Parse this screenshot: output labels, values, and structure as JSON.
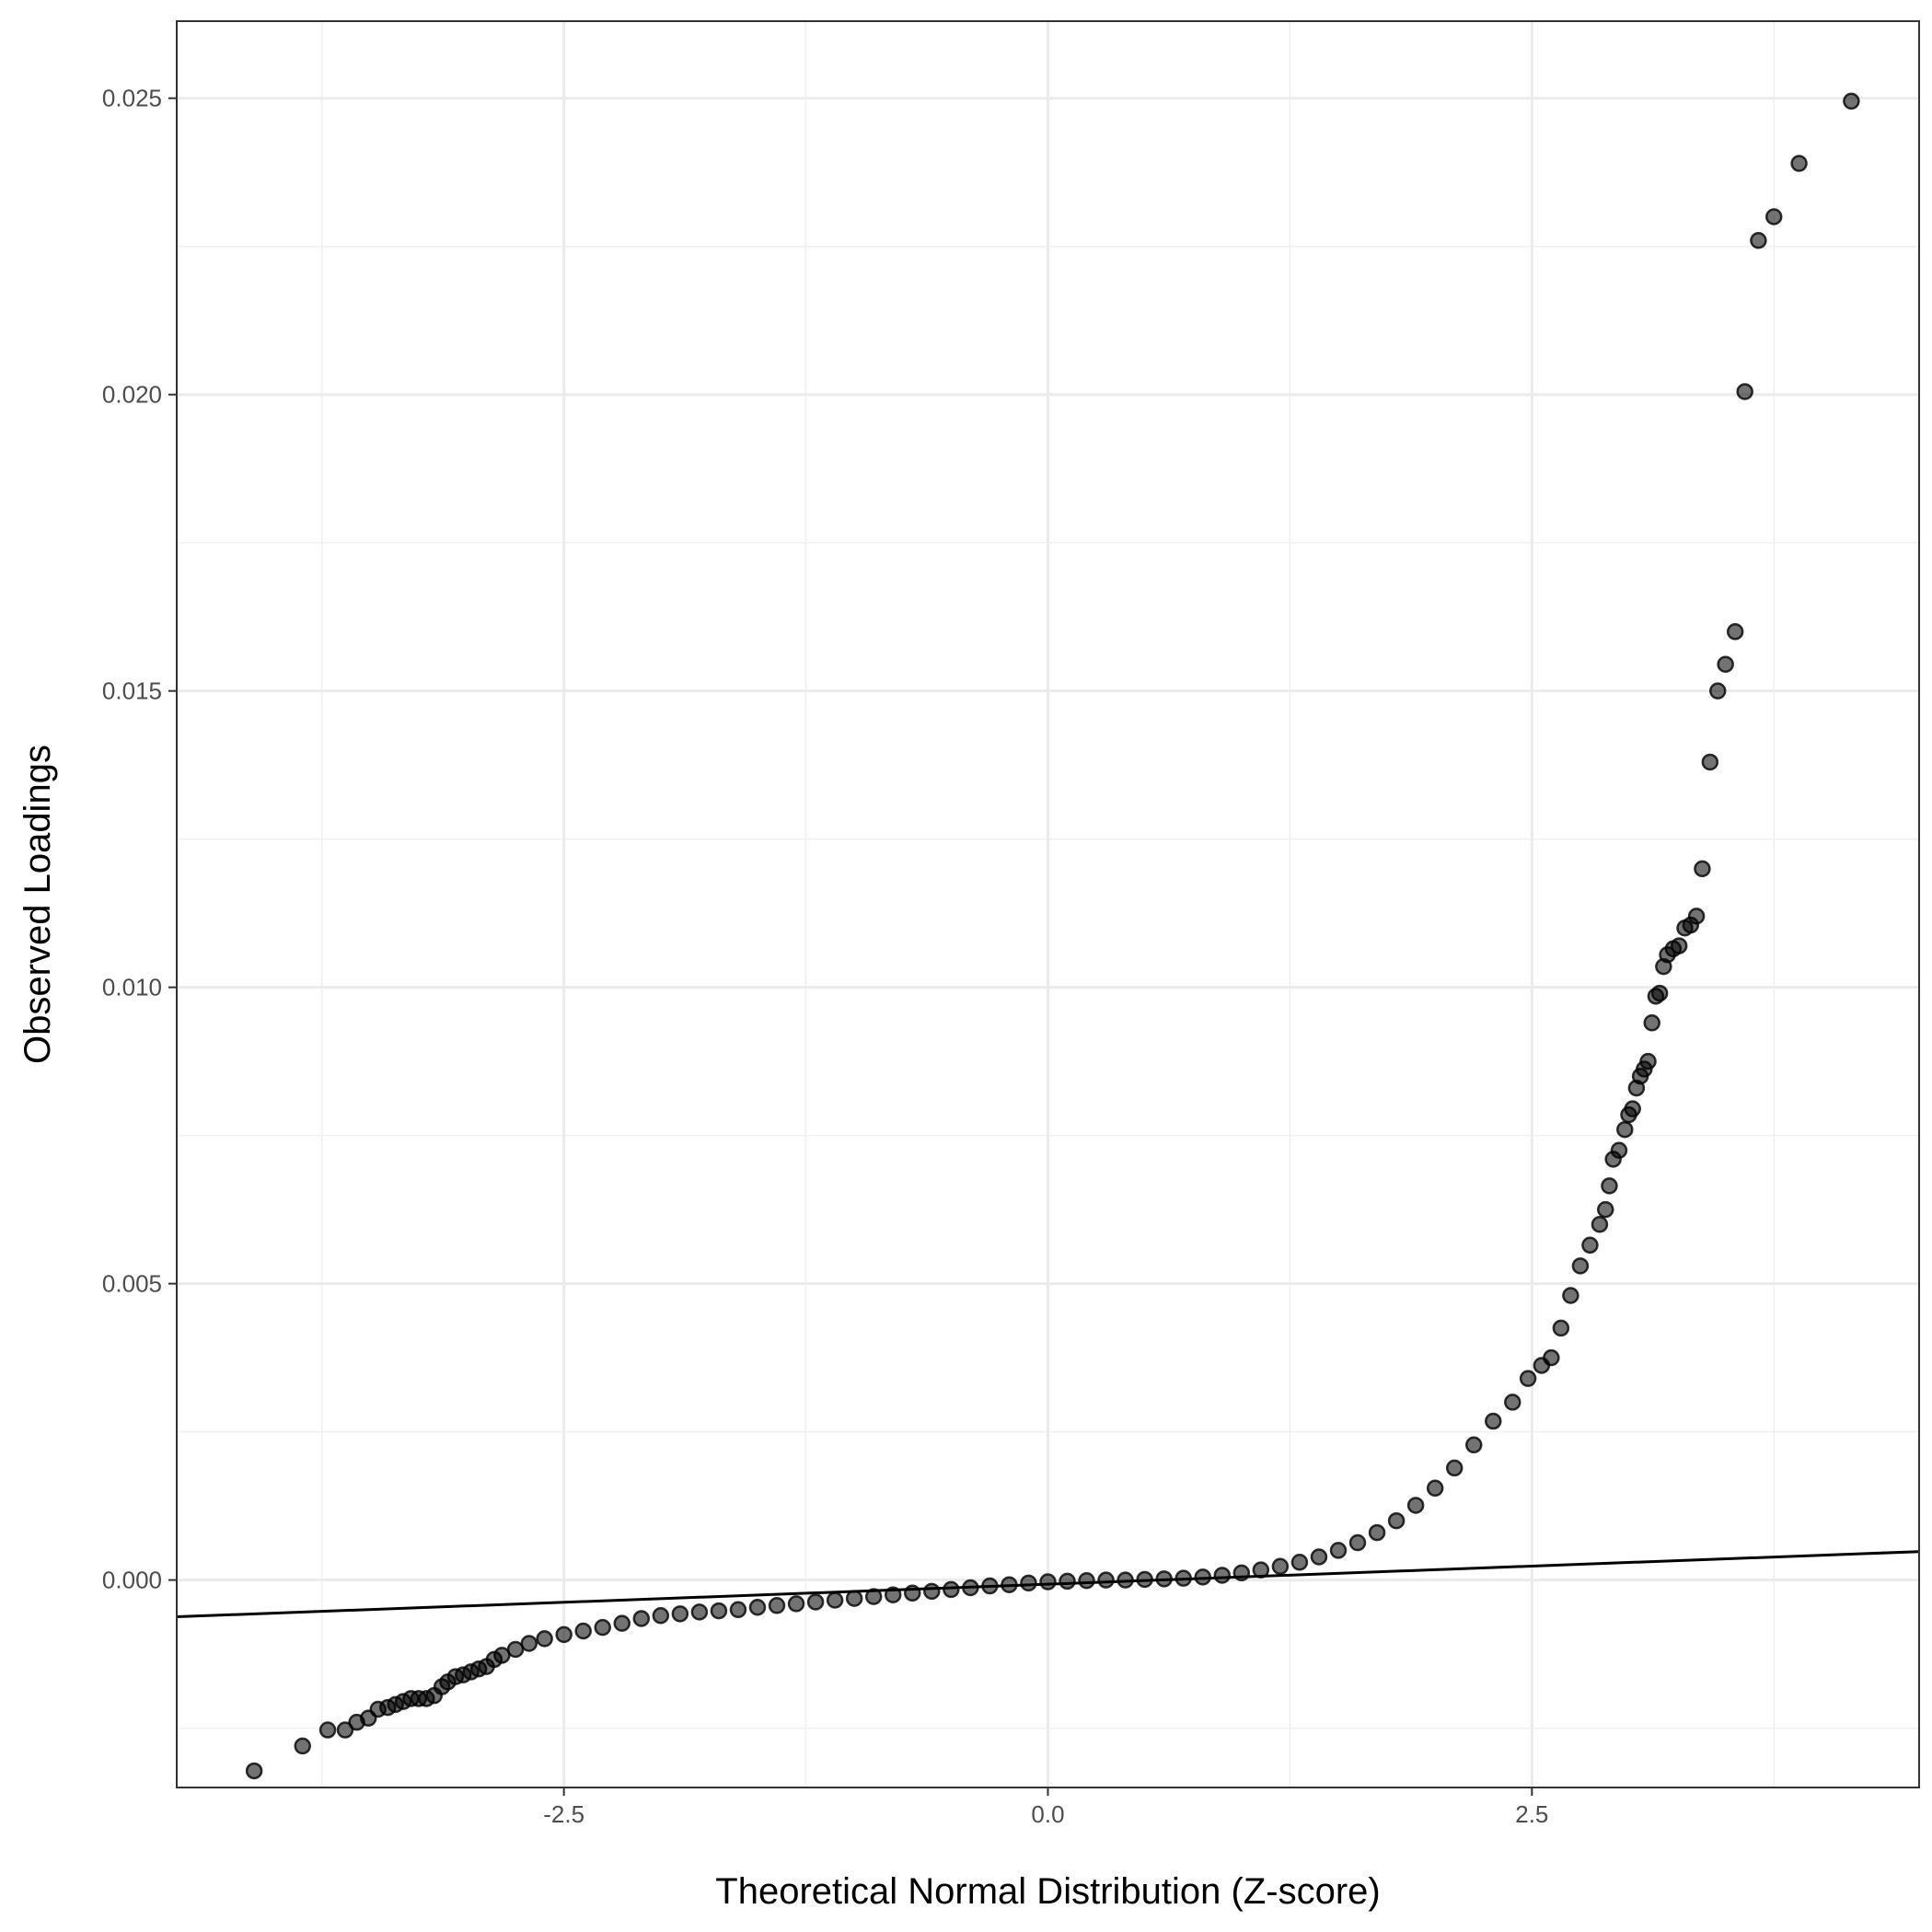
{
  "chart_data": {
    "type": "scatter",
    "title": "",
    "xlabel": "Theoretical Normal Distribution (Z-score)",
    "ylabel": "Observed Loadings",
    "xlim": [
      -4.5,
      4.5
    ],
    "ylim": [
      -0.0035,
      0.0263
    ],
    "x_ticks": [
      -2.5,
      0.0,
      2.5
    ],
    "x_tick_labels": [
      "-2.5",
      "0.0",
      "2.5"
    ],
    "y_ticks": [
      0.0,
      0.005,
      0.01,
      0.015,
      0.02,
      0.025
    ],
    "y_tick_labels": [
      "0.000",
      "0.005",
      "0.010",
      "0.015",
      "0.020",
      "0.025"
    ],
    "grid": true,
    "reference_line": {
      "x": [
        -4.5,
        4.5
      ],
      "y": [
        -0.00062,
        0.00048
      ]
    },
    "point_color": "#000000",
    "series": [
      {
        "points": [
          [
            -4.1,
            -0.00322
          ],
          [
            -3.85,
            -0.0028
          ],
          [
            -3.72,
            -0.00253
          ],
          [
            -3.63,
            -0.00253
          ],
          [
            -3.57,
            -0.0024
          ],
          [
            -3.51,
            -0.00233
          ],
          [
            -3.46,
            -0.00218
          ],
          [
            -3.41,
            -0.00215
          ],
          [
            -3.37,
            -0.0021
          ],
          [
            -3.33,
            -0.00205
          ],
          [
            -3.29,
            -0.002
          ],
          [
            -3.25,
            -0.002
          ],
          [
            -3.21,
            -0.002
          ],
          [
            -3.17,
            -0.00195
          ],
          [
            -3.13,
            -0.0018
          ],
          [
            -3.1,
            -0.00172
          ],
          [
            -3.06,
            -0.00163
          ],
          [
            -3.02,
            -0.0016
          ],
          [
            -2.98,
            -0.00155
          ],
          [
            -2.94,
            -0.0015
          ],
          [
            -2.9,
            -0.00146
          ],
          [
            -2.86,
            -0.00134
          ],
          [
            -2.82,
            -0.00127
          ],
          [
            -2.75,
            -0.00117
          ],
          [
            -2.68,
            -0.00107
          ],
          [
            -2.6,
            -0.00099
          ],
          [
            -2.5,
            -0.00092
          ],
          [
            -2.4,
            -0.00086
          ],
          [
            -2.3,
            -0.0008
          ],
          [
            -2.2,
            -0.00073
          ],
          [
            -2.1,
            -0.00065
          ],
          [
            -2.0,
            -0.0006
          ],
          [
            -1.9,
            -0.00057
          ],
          [
            -1.8,
            -0.00054
          ],
          [
            -1.7,
            -0.00052
          ],
          [
            -1.6,
            -0.0005
          ],
          [
            -1.5,
            -0.00046
          ],
          [
            -1.4,
            -0.00043
          ],
          [
            -1.3,
            -0.0004
          ],
          [
            -1.2,
            -0.00037
          ],
          [
            -1.1,
            -0.00034
          ],
          [
            -1.0,
            -0.00031
          ],
          [
            -0.9,
            -0.00028
          ],
          [
            -0.8,
            -0.00025
          ],
          [
            -0.7,
            -0.00022
          ],
          [
            -0.6,
            -0.00019
          ],
          [
            -0.5,
            -0.00016
          ],
          [
            -0.4,
            -0.00013
          ],
          [
            -0.3,
            -0.0001
          ],
          [
            -0.2,
            -8e-05
          ],
          [
            -0.1,
            -5e-05
          ],
          [
            0.0,
            -3e-05
          ],
          [
            0.1,
            -2e-05
          ],
          [
            0.2,
            -1e-05
          ],
          [
            0.3,
            0.0
          ],
          [
            0.4,
            0.0
          ],
          [
            0.5,
            1e-05
          ],
          [
            0.6,
            2e-05
          ],
          [
            0.7,
            3e-05
          ],
          [
            0.8,
            5e-05
          ],
          [
            0.9,
            8e-05
          ],
          [
            1.0,
            0.00012
          ],
          [
            1.1,
            0.00017
          ],
          [
            1.2,
            0.00023
          ],
          [
            1.3,
            0.0003
          ],
          [
            1.4,
            0.00039
          ],
          [
            1.5,
            0.0005
          ],
          [
            1.6,
            0.00063
          ],
          [
            1.7,
            0.0008
          ],
          [
            1.8,
            0.001
          ],
          [
            1.9,
            0.00126
          ],
          [
            2.0,
            0.00155
          ],
          [
            2.1,
            0.00189
          ],
          [
            2.2,
            0.00228
          ],
          [
            2.3,
            0.00268
          ],
          [
            2.4,
            0.003
          ],
          [
            2.48,
            0.0034
          ],
          [
            2.55,
            0.00362
          ],
          [
            2.6,
            0.00375
          ],
          [
            2.65,
            0.00425
          ],
          [
            2.7,
            0.0048
          ],
          [
            2.75,
            0.0053
          ],
          [
            2.8,
            0.00565
          ],
          [
            2.85,
            0.006
          ],
          [
            2.88,
            0.00625
          ],
          [
            2.9,
            0.00665
          ],
          [
            2.92,
            0.0071
          ],
          [
            2.95,
            0.00725
          ],
          [
            2.98,
            0.0076
          ],
          [
            3.0,
            0.00785
          ],
          [
            3.02,
            0.00795
          ],
          [
            3.04,
            0.0083
          ],
          [
            3.06,
            0.0085
          ],
          [
            3.08,
            0.00862
          ],
          [
            3.1,
            0.00875
          ],
          [
            3.12,
            0.0094
          ],
          [
            3.14,
            0.00985
          ],
          [
            3.16,
            0.0099
          ],
          [
            3.18,
            0.01035
          ],
          [
            3.2,
            0.01055
          ],
          [
            3.23,
            0.01065
          ],
          [
            3.26,
            0.0107
          ],
          [
            3.29,
            0.011
          ],
          [
            3.32,
            0.01105
          ],
          [
            3.35,
            0.0112
          ],
          [
            3.38,
            0.012
          ],
          [
            3.42,
            0.0138
          ],
          [
            3.46,
            0.015
          ],
          [
            3.5,
            0.01545
          ],
          [
            3.55,
            0.016
          ],
          [
            3.6,
            0.02005
          ],
          [
            3.67,
            0.0226
          ],
          [
            3.75,
            0.023
          ],
          [
            3.88,
            0.0239
          ],
          [
            4.15,
            0.02495
          ]
        ]
      }
    ]
  }
}
